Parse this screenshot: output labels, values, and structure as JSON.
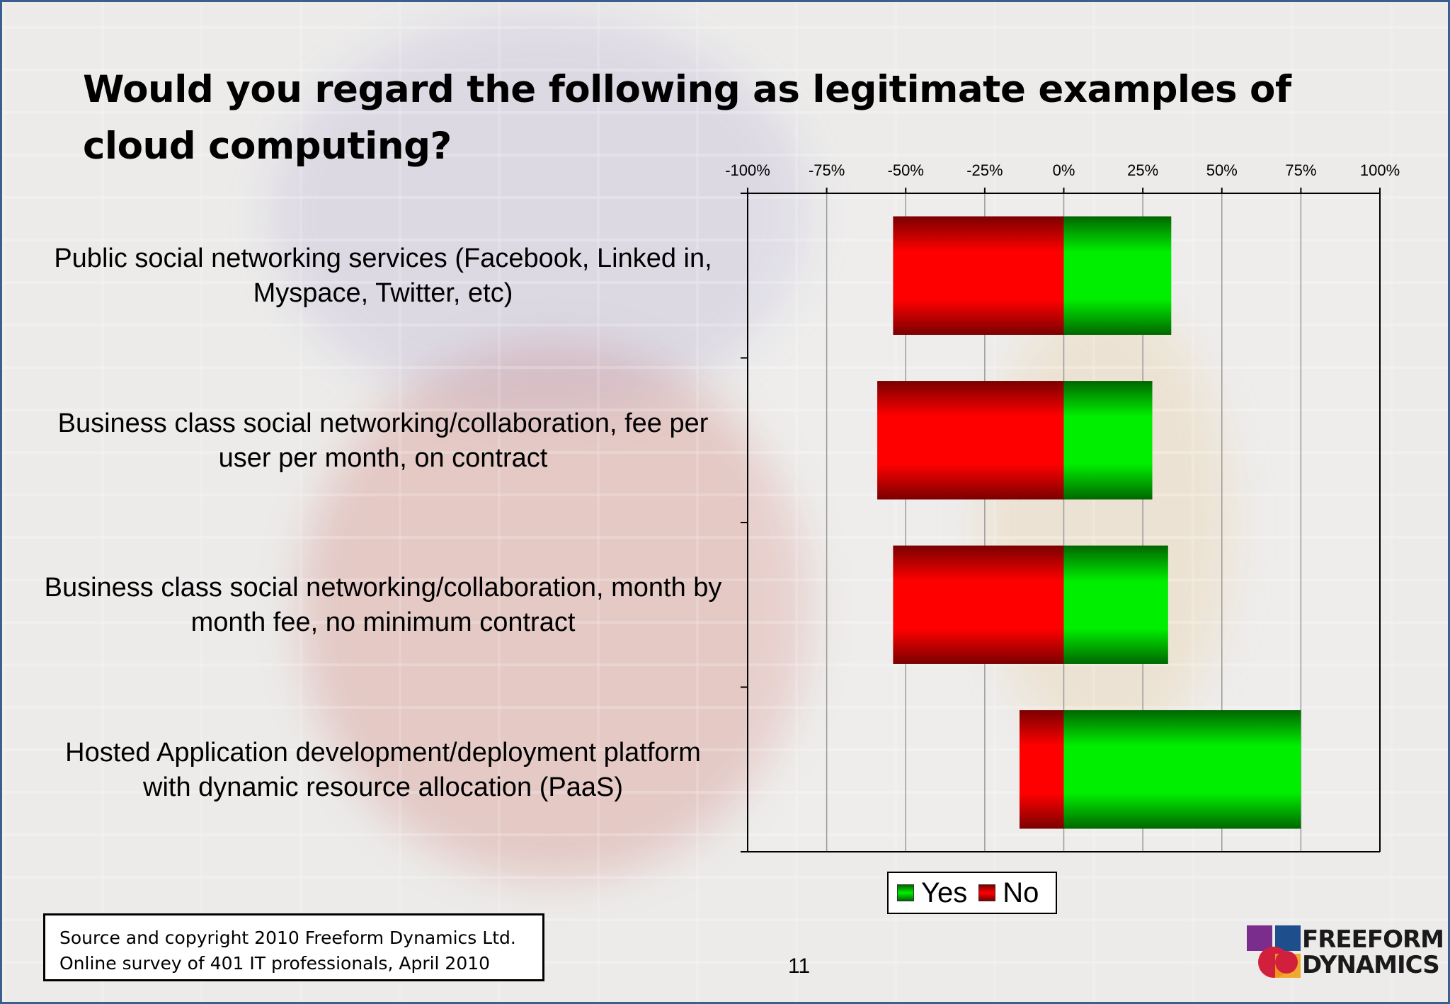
{
  "slide": {
    "title": "Would you regard the following as legitimate examples of cloud computing?",
    "source_line1": "Source and copyright 2010 Freeform Dynamics Ltd.",
    "source_line2": "Online survey of 401 IT professionals, April 2010",
    "page_number": "11",
    "logo_line1": "FREEFORM",
    "logo_line2": "DYNAMICS"
  },
  "chart_data": {
    "type": "bar",
    "orientation": "horizontal",
    "stacked": "diverging",
    "categories": [
      "Public social networking services (Facebook, Linked in, Myspace, Twitter, etc)",
      "Business class social networking/collaboration, fee per user per month, on contract",
      "Business class social networking/collaboration, month by month fee, no minimum contract",
      "Hosted Application development/deployment platform with dynamic resource allocation (PaaS)"
    ],
    "series": [
      {
        "name": "Yes",
        "color": "#00c000",
        "values": [
          34,
          28,
          33,
          75
        ]
      },
      {
        "name": "No",
        "color": "#e00000",
        "values": [
          -54,
          -59,
          -54,
          -14
        ]
      }
    ],
    "xlim": [
      -100,
      100
    ],
    "xticks": [
      "-100%",
      "-75%",
      "-50%",
      "-25%",
      "0%",
      "25%",
      "50%",
      "75%",
      "100%"
    ],
    "grid": true,
    "legend": "bottom"
  }
}
